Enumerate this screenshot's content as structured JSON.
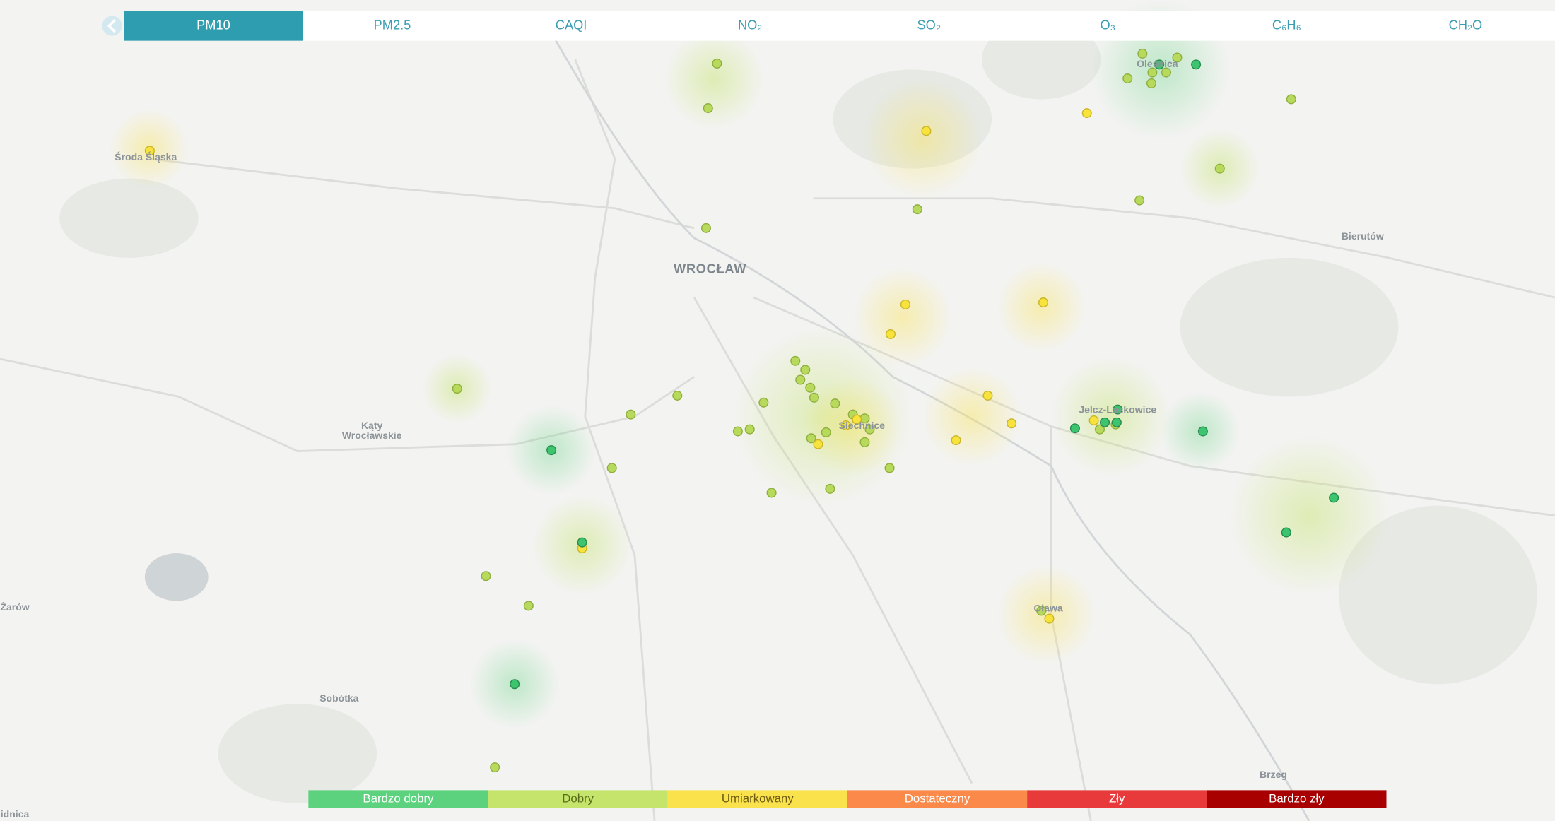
{
  "tabs": [
    "PM10",
    "PM2.5",
    "CAQI",
    "NO₂",
    "SO₂",
    "O₃",
    "C₆H₆",
    "CH₂O"
  ],
  "active_tab": "PM10",
  "places": [
    {
      "lines": [
        "Środa Śląska"
      ]
    },
    {
      "lines": [
        "WROCŁAW"
      ]
    },
    {
      "lines": [
        "Kąty",
        "Wrocławskie"
      ]
    },
    {
      "lines": [
        "Żarów"
      ]
    },
    {
      "lines": [
        "Sobótka"
      ]
    },
    {
      "lines": [
        "Bierutów"
      ]
    },
    {
      "lines": [
        "Oleśnica"
      ]
    },
    {
      "lines": [
        "Jelcz-Laskowice"
      ]
    },
    {
      "lines": [
        "Siechnice"
      ]
    },
    {
      "lines": [
        "Oława"
      ]
    },
    {
      "lines": [
        "Brzeg"
      ]
    },
    {
      "lines": [
        "idnica"
      ]
    }
  ],
  "legend": [
    {
      "label": "Bardzo dobry",
      "color": "#5cd27e"
    },
    {
      "label": "Dobry",
      "color": "#c4e46b"
    },
    {
      "label": "Umiarkowany",
      "color": "#fae24c"
    },
    {
      "label": "Dostateczny",
      "color": "#fb8a4a"
    },
    {
      "label": "Zły",
      "color": "#e8393b"
    },
    {
      "label": "Bardzo zły",
      "color": "#a80000"
    }
  ]
}
